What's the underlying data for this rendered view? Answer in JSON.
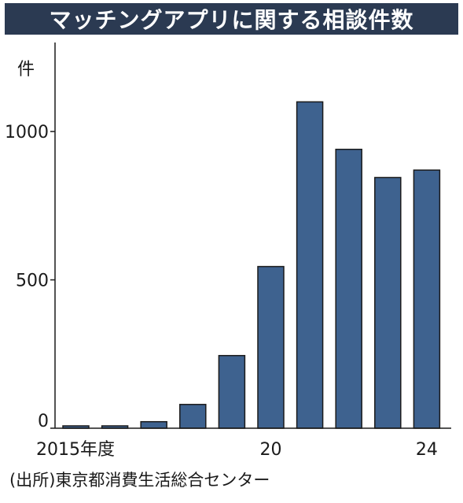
{
  "title": "マッチングアプリに関する相談件数",
  "unit_label": "件",
  "source": "(出所)東京都消費生活総合センター",
  "colors": {
    "bar": "#3e628f",
    "title_bg": "#2b3a52"
  },
  "chart_data": {
    "type": "bar",
    "title": "マッチングアプリに関する相談件数",
    "xlabel": "",
    "ylabel": "件",
    "categories": [
      "2015",
      "2016",
      "2017",
      "2018",
      "2019",
      "2020",
      "2021",
      "2022",
      "2023",
      "2024"
    ],
    "x_tick_labels": [
      {
        "category_index": 0,
        "label": "2015年度"
      },
      {
        "category_index": 5,
        "label": "20"
      },
      {
        "category_index": 9,
        "label": "24"
      }
    ],
    "values": [
      8,
      8,
      22,
      80,
      245,
      545,
      1100,
      940,
      845,
      870
    ],
    "ylim": [
      0,
      1300
    ],
    "y_ticks": [
      0,
      500,
      1000
    ],
    "grid": false,
    "legend": "none"
  }
}
